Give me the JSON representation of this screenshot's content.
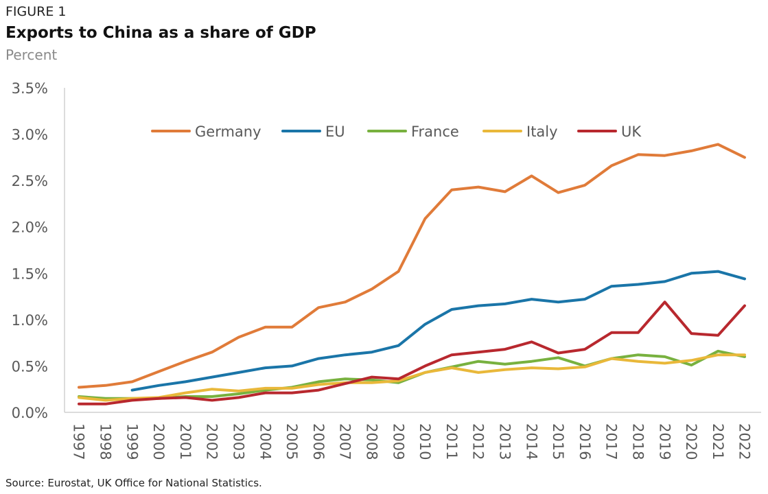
{
  "figure_label": "FIGURE 1",
  "title": "Exports to China as a share of GDP",
  "subtitle": "Percent",
  "source": "Source: Eurostat, UK Office for National Statistics.",
  "colors": {
    "Germany": "#e07b39",
    "EU": "#1a75a8",
    "France": "#78b13f",
    "Italy": "#e9b83a",
    "UK": "#b8282e",
    "axis": "#d0d0d0",
    "tick_text": "#595959"
  },
  "chart_data": {
    "type": "line",
    "x": [
      "1997",
      "1998",
      "1999",
      "2000",
      "2001",
      "2002",
      "2003",
      "2004",
      "2005",
      "2006",
      "2007",
      "2008",
      "2009",
      "2010",
      "2011",
      "2012",
      "2013",
      "2014",
      "2015",
      "2016",
      "2017",
      "2018",
      "2019",
      "2020",
      "2021",
      "2022"
    ],
    "ylim": [
      0,
      3.5
    ],
    "yticks": [
      "0.0%",
      "0.5%",
      "1.0%",
      "1.5%",
      "2.0%",
      "2.5%",
      "3.0%",
      "3.5%"
    ],
    "ytick_values": [
      0,
      0.5,
      1.0,
      1.5,
      2.0,
      2.5,
      3.0,
      3.5
    ],
    "grid": false,
    "legend_position": "top",
    "series": [
      {
        "name": "Germany",
        "values": [
          0.27,
          0.29,
          0.33,
          0.44,
          0.55,
          0.65,
          0.81,
          0.92,
          0.92,
          1.13,
          1.19,
          1.33,
          1.52,
          2.09,
          2.4,
          2.43,
          2.38,
          2.55,
          2.37,
          2.45,
          2.66,
          2.78,
          2.77,
          2.82,
          2.89,
          2.75
        ]
      },
      {
        "name": "EU",
        "values": [
          null,
          null,
          0.24,
          0.29,
          0.33,
          0.38,
          0.43,
          0.48,
          0.5,
          0.58,
          0.62,
          0.65,
          0.72,
          0.95,
          1.11,
          1.15,
          1.17,
          1.22,
          1.19,
          1.22,
          1.36,
          1.38,
          1.41,
          1.5,
          1.52,
          1.44
        ]
      },
      {
        "name": "France",
        "values": [
          0.17,
          0.15,
          0.15,
          0.15,
          0.17,
          0.17,
          0.2,
          0.24,
          0.27,
          0.33,
          0.36,
          0.35,
          0.32,
          0.43,
          0.49,
          0.55,
          0.52,
          0.55,
          0.59,
          0.5,
          0.58,
          0.62,
          0.6,
          0.51,
          0.66,
          0.6
        ]
      },
      {
        "name": "Italy",
        "values": [
          0.16,
          0.13,
          0.15,
          0.16,
          0.21,
          0.25,
          0.23,
          0.26,
          0.26,
          0.3,
          0.32,
          0.32,
          0.34,
          0.43,
          0.48,
          0.43,
          0.46,
          0.48,
          0.47,
          0.49,
          0.58,
          0.55,
          0.53,
          0.56,
          0.62,
          0.62
        ]
      },
      {
        "name": "UK",
        "values": [
          0.09,
          0.09,
          0.13,
          0.15,
          0.16,
          0.13,
          0.16,
          0.21,
          0.21,
          0.24,
          0.31,
          0.38,
          0.36,
          0.5,
          0.62,
          0.65,
          0.68,
          0.76,
          0.64,
          0.68,
          0.86,
          0.86,
          1.19,
          0.85,
          0.83,
          1.15
        ]
      }
    ]
  }
}
